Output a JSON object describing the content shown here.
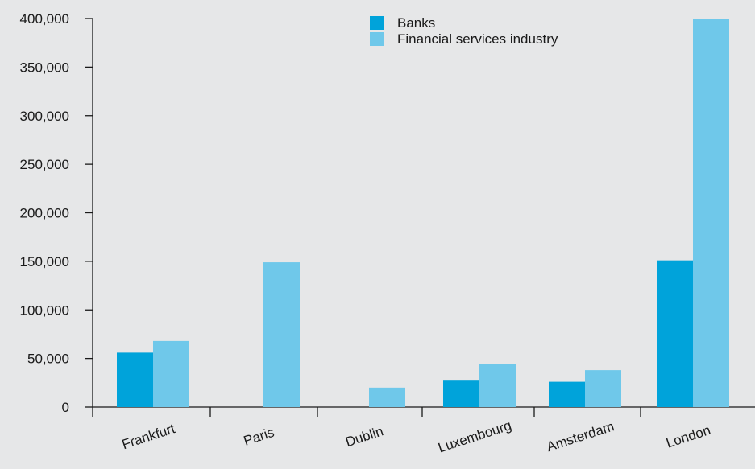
{
  "chart_data": {
    "type": "bar",
    "categories": [
      "Frankfurt",
      "Paris",
      "Dublin",
      "Luxembourg",
      "Amsterdam",
      "London"
    ],
    "series": [
      {
        "name": "Banks",
        "color": "#00a3da",
        "values": [
          56000,
          null,
          null,
          28000,
          26000,
          151000
        ]
      },
      {
        "name": "Financial services industry",
        "color": "#6fc8ea",
        "values": [
          68000,
          149000,
          20000,
          44000,
          38000,
          400000
        ]
      }
    ],
    "ylim": [
      0,
      400000
    ],
    "yticks": [
      0,
      50000,
      100000,
      150000,
      200000,
      250000,
      300000,
      350000,
      400000
    ],
    "ytick_labels": [
      "0",
      "50,000",
      "100,000",
      "150,000",
      "200,000",
      "250,000",
      "300,000",
      "350,000",
      "400,000"
    ],
    "legend_position": "top-center",
    "grid": false,
    "title": "",
    "xlabel": "",
    "ylabel": ""
  }
}
